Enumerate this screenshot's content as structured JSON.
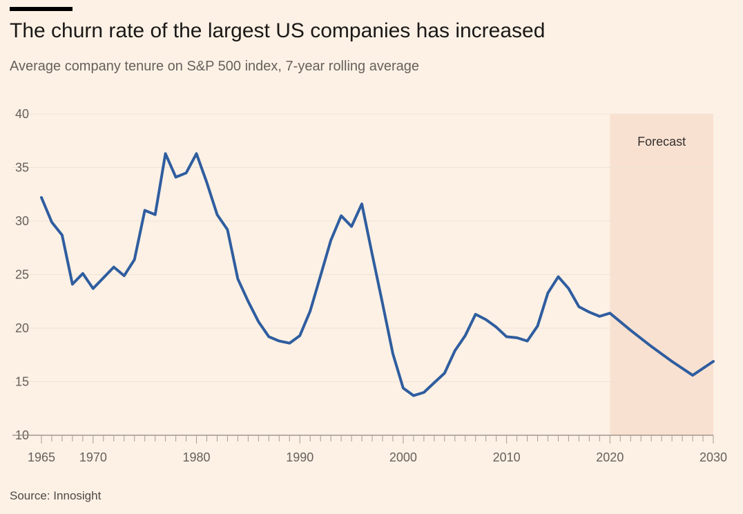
{
  "header": {
    "title": "The churn rate of the largest US companies has increased",
    "subtitle": "Average company tenure on S&P 500 index, 7-year rolling average"
  },
  "footer": {
    "source": "Source: Innosight"
  },
  "colors": {
    "background": "#fdf1e5",
    "line": "#2f5d9f",
    "forecast_band": "#f9e1d1",
    "grid": "#efe3d6"
  },
  "chart_data": {
    "type": "line",
    "title": "The churn rate of the largest US companies has increased",
    "subtitle": "Average company tenure on S&P 500 index, 7-year rolling average",
    "xlabel": "",
    "ylabel": "",
    "xlim": [
      1965,
      2030
    ],
    "ylim": [
      10,
      40
    ],
    "yticks": [
      10,
      15,
      20,
      25,
      30,
      35,
      40
    ],
    "xticks": [
      1965,
      1970,
      1980,
      1990,
      2000,
      2010,
      2020,
      2030
    ],
    "grid": true,
    "forecast": {
      "label": "Forecast",
      "from": 2020,
      "to": 2030
    },
    "series": [
      {
        "x": [
          1965,
          1966,
          1967,
          1968,
          1969,
          1970,
          1971,
          1972,
          1973,
          1974,
          1975,
          1976,
          1977,
          1978,
          1979,
          1980,
          1981,
          1982,
          1983,
          1984,
          1985,
          1986,
          1987,
          1988,
          1989,
          1990,
          1991,
          1992,
          1993,
          1994,
          1995,
          1996,
          1997,
          1998,
          1999,
          2000,
          2001,
          2002,
          2003,
          2004,
          2005,
          2006,
          2007,
          2008,
          2009,
          2010,
          2011,
          2012,
          2013,
          2014,
          2015,
          2016,
          2017,
          2018,
          2019,
          2020,
          2022,
          2024,
          2026,
          2028,
          2030
        ],
        "values": [
          32.2,
          29.9,
          28.7,
          24.1,
          25.1,
          23.7,
          24.7,
          25.7,
          24.9,
          26.4,
          31.0,
          30.6,
          36.3,
          34.1,
          34.5,
          36.3,
          33.6,
          30.6,
          29.2,
          24.6,
          22.5,
          20.6,
          19.2,
          18.8,
          18.6,
          19.3,
          21.6,
          24.9,
          28.2,
          30.5,
          29.5,
          31.6,
          26.9,
          22.3,
          17.6,
          14.4,
          13.7,
          14.0,
          14.9,
          15.8,
          17.9,
          19.3,
          21.3,
          20.8,
          20.1,
          19.2,
          19.1,
          18.8,
          20.2,
          23.3,
          24.8,
          23.7,
          22.0,
          21.5,
          21.1,
          21.4,
          19.8,
          18.3,
          16.9,
          15.6,
          16.9
        ]
      }
    ]
  }
}
